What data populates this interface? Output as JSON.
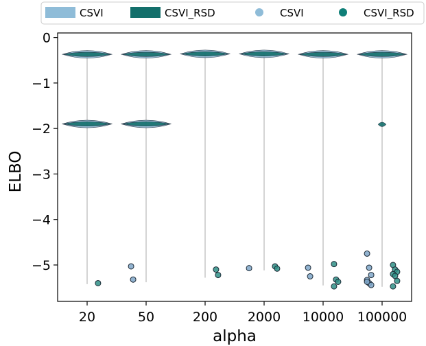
{
  "chart_data": {
    "type": "violin",
    "xlabel": "alpha",
    "ylabel": "ELBO",
    "categories": [
      "20",
      "50",
      "200",
      "2000",
      "10000",
      "100000"
    ],
    "ylim": [
      -5.8,
      0.1
    ],
    "yticks": [
      0,
      -1,
      -2,
      -3,
      -4,
      -5
    ],
    "ytick_labels": [
      "0",
      "−1",
      "−2",
      "−3",
      "−4",
      "−5"
    ],
    "grid": false,
    "legend_placement": "top",
    "legend": [
      {
        "label": "CSVI",
        "marker": "patch",
        "color": "#8fbcd8"
      },
      {
        "label": "CSVI_RSD",
        "marker": "patch",
        "color": "#136f6b"
      },
      {
        "label": "CSVI",
        "marker": "point",
        "color": "#8fbcd8"
      },
      {
        "label": "CSVI_RSD",
        "marker": "point",
        "color": "#0f7f78"
      }
    ],
    "colors": {
      "csvi": "#8fbcd8",
      "csvi_rsd": "#136f6b",
      "csvi_point": "#7fa6c8",
      "csvi_rsd_point": "#2f8f86",
      "range_line": "#a8a8a8"
    },
    "series": [
      {
        "name": "CSVI",
        "violins": [
          {
            "category": "20",
            "range": [
              -5.42,
              -0.33
            ],
            "modes": [
              -0.37,
              -1.9
            ]
          },
          {
            "category": "50",
            "range": [
              -5.38,
              -0.33
            ],
            "modes": [
              -0.37,
              -1.9
            ]
          },
          {
            "category": "200",
            "range": [
              -5.28,
              -0.33
            ],
            "modes": [
              -0.36
            ]
          },
          {
            "category": "2000",
            "range": [
              -5.12,
              -0.33
            ],
            "modes": [
              -0.36
            ]
          },
          {
            "category": "10000",
            "range": [
              -5.45,
              -0.33
            ],
            "modes": [
              -0.37
            ]
          },
          {
            "category": "100000",
            "range": [
              -5.48,
              -0.3
            ],
            "modes": [
              -0.37
            ]
          }
        ],
        "points": [
          {
            "category": "50",
            "y": -5.03
          },
          {
            "category": "50",
            "y": -5.32
          },
          {
            "category": "2000",
            "y": -5.07
          },
          {
            "category": "10000",
            "y": -5.06
          },
          {
            "category": "10000",
            "y": -5.25
          },
          {
            "category": "100000",
            "y": -4.75
          },
          {
            "category": "100000",
            "y": -5.06
          },
          {
            "category": "100000",
            "y": -5.22
          },
          {
            "category": "100000",
            "y": -5.33
          },
          {
            "category": "100000",
            "y": -5.4
          },
          {
            "category": "100000",
            "y": -5.44
          },
          {
            "category": "100000",
            "y": -5.37
          }
        ]
      },
      {
        "name": "CSVI_RSD",
        "violins": [
          {
            "category": "20",
            "range": [
              -5.42,
              -0.33
            ],
            "modes": [
              -0.37,
              -1.9
            ]
          },
          {
            "category": "50",
            "range": [
              -5.38,
              -0.33
            ],
            "modes": [
              -0.37,
              -1.9
            ]
          },
          {
            "category": "200",
            "range": [
              -5.28,
              -0.33
            ],
            "modes": [
              -0.36
            ]
          },
          {
            "category": "2000",
            "range": [
              -5.12,
              -0.33
            ],
            "modes": [
              -0.36
            ]
          },
          {
            "category": "10000",
            "range": [
              -5.45,
              -0.33
            ],
            "modes": [
              -0.37
            ]
          },
          {
            "category": "100000",
            "range": [
              -5.48,
              -0.3
            ],
            "modes": [
              -0.37,
              -1.91
            ]
          }
        ],
        "points": [
          {
            "category": "20",
            "y": -5.4
          },
          {
            "category": "200",
            "y": -5.1
          },
          {
            "category": "200",
            "y": -5.22
          },
          {
            "category": "2000",
            "y": -5.03
          },
          {
            "category": "2000",
            "y": -5.08
          },
          {
            "category": "10000",
            "y": -4.98
          },
          {
            "category": "10000",
            "y": -5.32
          },
          {
            "category": "10000",
            "y": -5.37
          },
          {
            "category": "10000",
            "y": -5.47
          },
          {
            "category": "100000",
            "y": -5.0
          },
          {
            "category": "100000",
            "y": -5.1
          },
          {
            "category": "100000",
            "y": -5.15
          },
          {
            "category": "100000",
            "y": -5.2
          },
          {
            "category": "100000",
            "y": -5.24
          },
          {
            "category": "100000",
            "y": -5.35
          },
          {
            "category": "100000",
            "y": -5.47
          }
        ]
      }
    ]
  }
}
